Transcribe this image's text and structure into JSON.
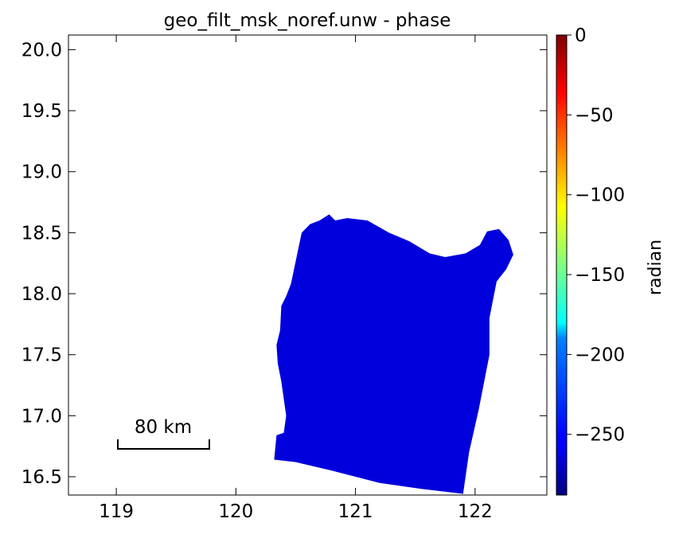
{
  "chart_data": {
    "type": "heatmap",
    "title": "geo_filt_msk_noref.unw - phase",
    "xlim": [
      118.6,
      122.6
    ],
    "ylim": [
      16.35,
      20.12
    ],
    "x_ticks": [
      "119",
      "120",
      "121",
      "122"
    ],
    "y_ticks": [
      "16.5",
      "17.0",
      "17.5",
      "18.0",
      "18.5",
      "19.0",
      "19.5",
      "20.0"
    ],
    "grid": false,
    "colormap": "jet",
    "colorbar": {
      "label": "radian",
      "range": [
        -288,
        0
      ],
      "ticks": [
        "0",
        "−50",
        "−100",
        "−150",
        "−200",
        "−250"
      ]
    },
    "dominant_value": -262,
    "scalebar_label": "80 km",
    "region_outline_lonlat": [
      [
        120.32,
        16.64
      ],
      [
        120.34,
        16.84
      ],
      [
        120.4,
        16.86
      ],
      [
        120.42,
        17.0
      ],
      [
        120.38,
        17.28
      ],
      [
        120.35,
        17.43
      ],
      [
        120.34,
        17.58
      ],
      [
        120.37,
        17.7
      ],
      [
        120.38,
        17.9
      ],
      [
        120.42,
        17.98
      ],
      [
        120.46,
        18.08
      ],
      [
        120.52,
        18.36
      ],
      [
        120.55,
        18.5
      ],
      [
        120.62,
        18.57
      ],
      [
        120.7,
        18.6
      ],
      [
        120.78,
        18.65
      ],
      [
        120.83,
        18.6
      ],
      [
        120.93,
        18.62
      ],
      [
        121.1,
        18.6
      ],
      [
        121.28,
        18.5
      ],
      [
        121.45,
        18.43
      ],
      [
        121.62,
        18.33
      ],
      [
        121.75,
        18.3
      ],
      [
        121.92,
        18.33
      ],
      [
        122.04,
        18.4
      ],
      [
        122.1,
        18.51
      ],
      [
        122.2,
        18.53
      ],
      [
        122.28,
        18.44
      ],
      [
        122.32,
        18.32
      ],
      [
        122.26,
        18.2
      ],
      [
        122.18,
        18.1
      ],
      [
        122.12,
        17.8
      ],
      [
        122.12,
        17.5
      ],
      [
        122.03,
        17.05
      ],
      [
        121.95,
        16.7
      ],
      [
        121.9,
        16.36
      ],
      [
        121.55,
        16.4
      ],
      [
        121.2,
        16.45
      ],
      [
        120.8,
        16.55
      ],
      [
        120.5,
        16.62
      ]
    ]
  }
}
